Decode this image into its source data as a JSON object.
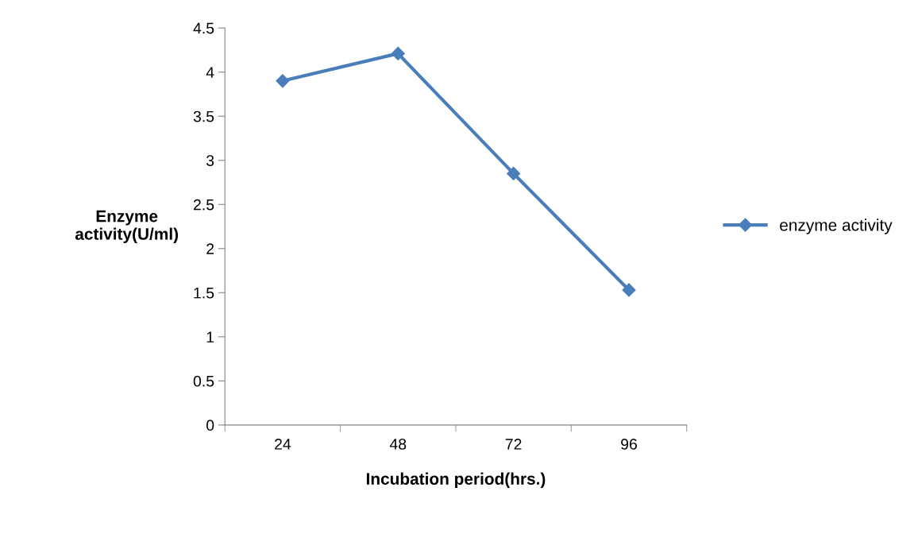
{
  "chart_data": {
    "type": "line",
    "xlabel": "Incubation period(hrs.)",
    "ylabel": "Enzyme\nactivity(U/ml)",
    "categories": [
      "24",
      "48",
      "72",
      "96"
    ],
    "series": [
      {
        "name": "enzyme activity",
        "color": "#4a7ebb",
        "values": [
          3.9,
          4.21,
          2.85,
          1.53
        ]
      }
    ],
    "ylim": [
      0,
      4.5
    ],
    "yticks": [
      0,
      0.5,
      1,
      1.5,
      2,
      2.5,
      3,
      3.5,
      4,
      4.5
    ],
    "grid": false,
    "legend": "right",
    "marker": "diamond",
    "line_style": "solid"
  }
}
